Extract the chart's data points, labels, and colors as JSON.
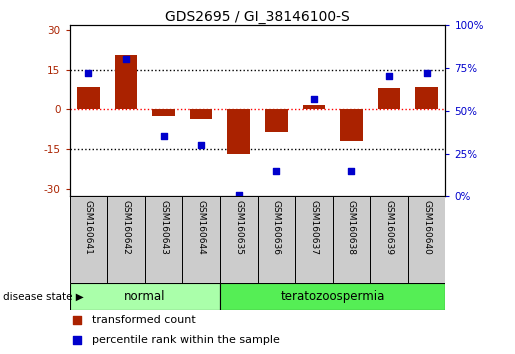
{
  "title": "GDS2695 / GI_38146100-S",
  "samples": [
    "GSM160641",
    "GSM160642",
    "GSM160643",
    "GSM160644",
    "GSM160635",
    "GSM160636",
    "GSM160637",
    "GSM160638",
    "GSM160639",
    "GSM160640"
  ],
  "groups": [
    "normal",
    "normal",
    "normal",
    "normal",
    "teratozoospermia",
    "teratozoospermia",
    "teratozoospermia",
    "teratozoospermia",
    "teratozoospermia",
    "teratozoospermia"
  ],
  "transformed_count": [
    8.5,
    20.5,
    -2.5,
    -3.5,
    -17.0,
    -8.5,
    1.5,
    -12.0,
    8.0,
    8.5
  ],
  "percentile_rank": [
    72,
    80,
    35,
    30,
    1,
    15,
    57,
    15,
    70,
    72
  ],
  "ylim_left": [
    -33,
    32
  ],
  "ylim_right": [
    0,
    100
  ],
  "yticks_left": [
    -30,
    -15,
    0,
    15,
    30
  ],
  "yticks_right": [
    0,
    25,
    50,
    75,
    100
  ],
  "yticklabels_left": [
    "-30",
    "-15",
    "0",
    "15",
    "30"
  ],
  "yticklabels_right": [
    "0%",
    "25%",
    "50%",
    "75%",
    "100%"
  ],
  "bar_color": "#aa2200",
  "dot_color": "#0000cc",
  "normal_color": "#aaffaa",
  "terato_color": "#55ee55",
  "sample_box_color": "#cccccc",
  "legend_red_label": "transformed count",
  "legend_blue_label": "percentile rank within the sample",
  "disease_state_label": "disease state",
  "normal_label": "normal",
  "terato_label": "teratozoospermia",
  "group_boundary": 4,
  "bar_width": 0.6
}
